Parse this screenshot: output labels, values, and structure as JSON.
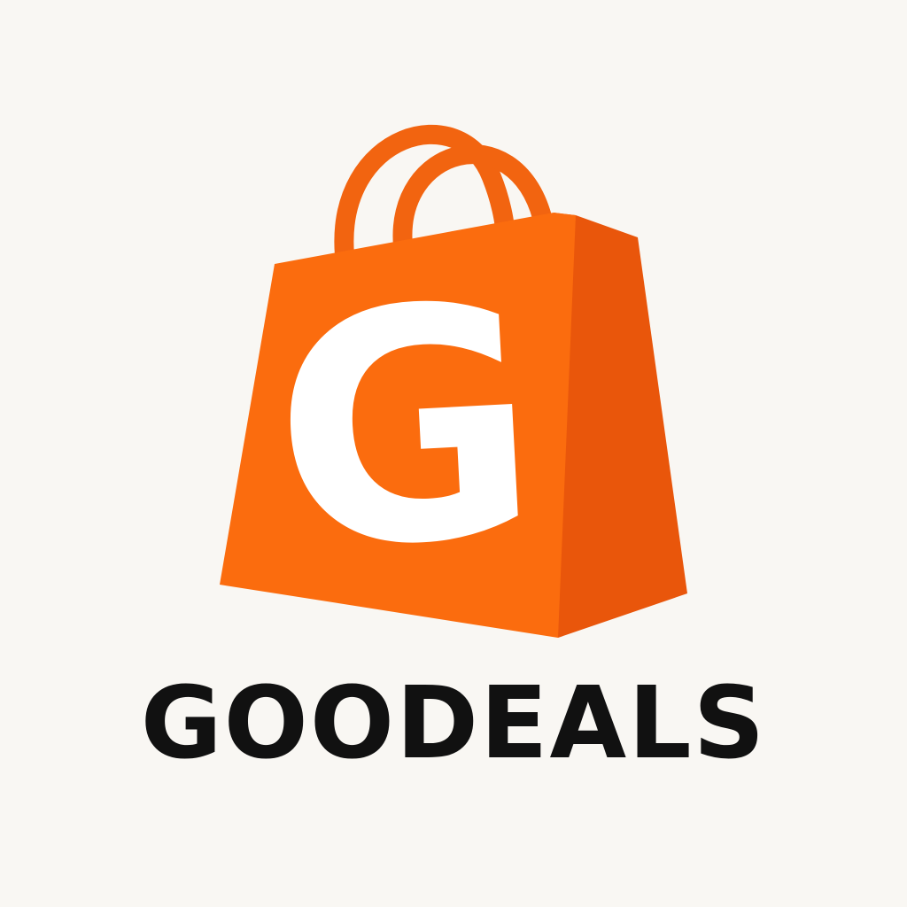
{
  "logo": {
    "monogram": "G",
    "wordmark": "GOODEALS",
    "icon": "shopping-bag-icon",
    "colors": {
      "background": "#f9f7f3",
      "bag_front": "#fb6c0e",
      "bag_side": "#e9560b",
      "bag_handle": "#f26410",
      "monogram": "#ffffff",
      "wordmark": "#111111"
    }
  }
}
